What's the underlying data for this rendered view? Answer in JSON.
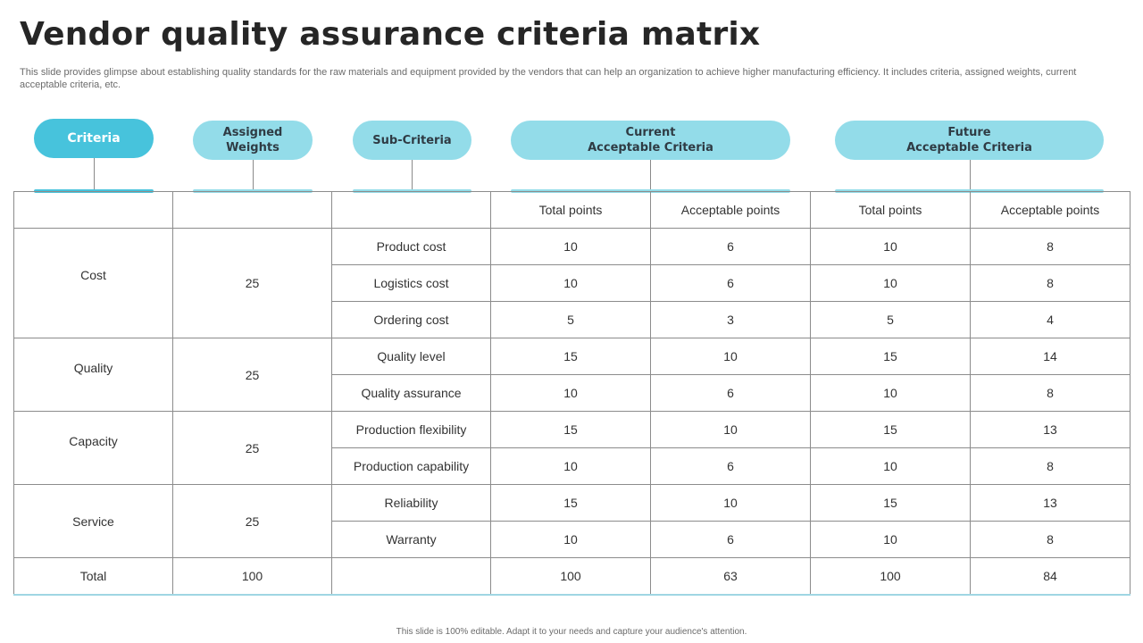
{
  "slide": {
    "title": "Vendor quality assurance criteria matrix",
    "subtitle": "This slide provides glimpse about establishing quality standards for the raw materials and equipment provided by the vendors that can help an organization to achieve higher manufacturing efficiency. It includes criteria, assigned weights, current acceptable criteria, etc.",
    "footer": "This slide is 100% editable.  Adapt it to your needs and capture your audience's attention."
  },
  "headers": {
    "criteria": "Criteria",
    "weights": "Assigned\nWeights",
    "sub_criteria": "Sub-Criteria",
    "current": "Current\nAcceptable Criteria",
    "future": "Future\nAcceptable Criteria"
  },
  "columns": {
    "total_points": "Total points",
    "acceptable_points": "Acceptable points"
  },
  "groups": [
    {
      "criteria": "Cost",
      "weight": "25"
    },
    {
      "criteria": "Quality",
      "weight": "25"
    },
    {
      "criteria": "Capacity",
      "weight": "25"
    },
    {
      "criteria": "Service",
      "weight": "25"
    }
  ],
  "rows": [
    {
      "sub": "Product cost",
      "cur_total": "10",
      "cur_acc": "6",
      "fut_total": "10",
      "fut_acc": "8"
    },
    {
      "sub": "Logistics cost",
      "cur_total": "10",
      "cur_acc": "6",
      "fut_total": "10",
      "fut_acc": "8"
    },
    {
      "sub": "Ordering cost",
      "cur_total": "5",
      "cur_acc": "3",
      "fut_total": "5",
      "fut_acc": "4"
    },
    {
      "sub": "Quality level",
      "cur_total": "15",
      "cur_acc": "10",
      "fut_total": "15",
      "fut_acc": "14"
    },
    {
      "sub": "Quality assurance",
      "cur_total": "10",
      "cur_acc": "6",
      "fut_total": "10",
      "fut_acc": "8"
    },
    {
      "sub": "Production flexibility",
      "cur_total": "15",
      "cur_acc": "10",
      "fut_total": "15",
      "fut_acc": "13"
    },
    {
      "sub": "Production capability",
      "cur_total": "10",
      "cur_acc": "6",
      "fut_total": "10",
      "fut_acc": "8"
    },
    {
      "sub": "Reliability",
      "cur_total": "15",
      "cur_acc": "10",
      "fut_total": "15",
      "fut_acc": "13"
    },
    {
      "sub": "Warranty",
      "cur_total": "10",
      "cur_acc": "6",
      "fut_total": "10",
      "fut_acc": "8"
    }
  ],
  "total": {
    "label": "Total",
    "weight": "100",
    "cur_total": "100",
    "cur_acc": "63",
    "fut_total": "100",
    "fut_acc": "84"
  },
  "colors": {
    "accent_primary": "#47c3dc",
    "accent_light": "#93dce9",
    "grid_line": "#8c8c8c",
    "title_text": "#262626"
  }
}
